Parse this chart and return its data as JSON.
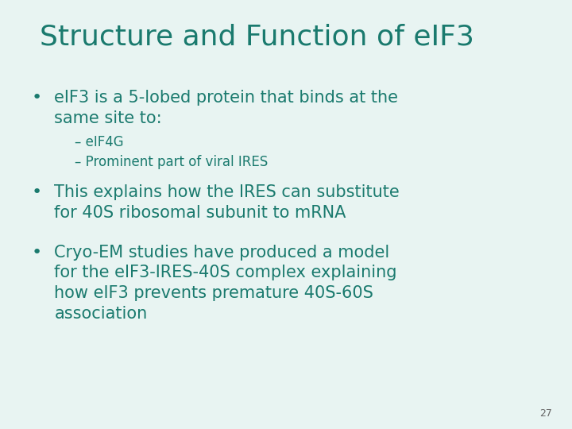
{
  "title": "Structure and Function of eIF3",
  "title_color": "#1a7a6e",
  "title_fontsize": 26,
  "background_color": "#e8f4f2",
  "text_color": "#1a7a6e",
  "slide_number": "27",
  "bullet1_main": "eIF3 is a 5-lobed protein that binds at the\nsame site to:",
  "bullet1_sub1": "– eIF4G",
  "bullet1_sub2": "– Prominent part of viral IRES",
  "bullet2": "This explains how the IRES can substitute\nfor 40S ribosomal subunit to mRNA",
  "bullet3": "Cryo-EM studies have produced a model\nfor the eIF3-IRES-40S complex explaining\nhow eIF3 prevents premature 40S-60S\nassociation",
  "bullet_fontsize": 15,
  "sub_fontsize": 12,
  "bullet_symbol": "•",
  "slide_num_fontsize": 9
}
